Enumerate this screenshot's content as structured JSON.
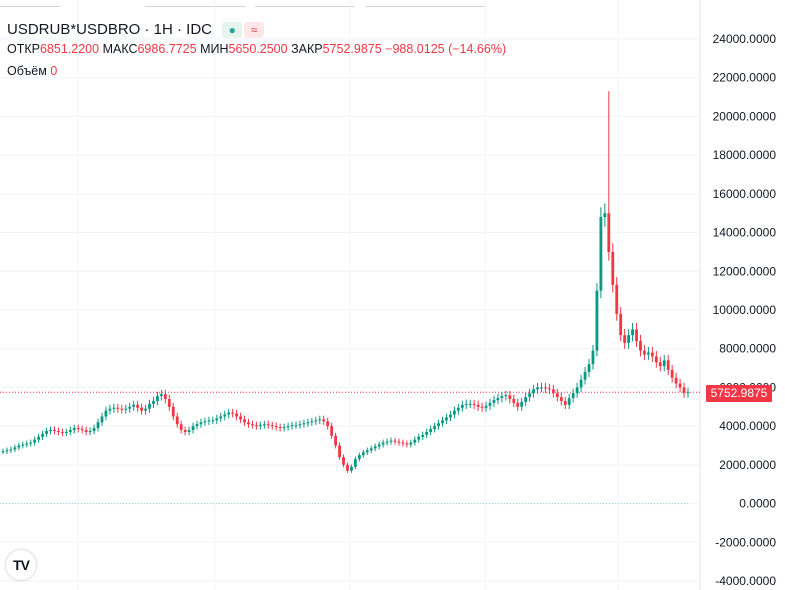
{
  "legend": {
    "symbol": "USDRUB*USDBRO · 1H · IDC",
    "open_label": "ОТКР",
    "open_value": "6851.2200",
    "high_label": "МАКС",
    "high_value": "6986.7725",
    "low_label": "МИН",
    "low_value": "5650.2500",
    "close_label": "ЗАКР",
    "close_value": "5752.9875",
    "change": "−988.0125 (−14.66%)",
    "volume_label": "Объём",
    "volume_value": "0",
    "status_green_icon": "dot-icon",
    "status_red_icon": "wave-icon"
  },
  "last_price_tag": "5752.9875",
  "logo_text": "TV",
  "colors": {
    "up": "#089981",
    "down": "#f23645",
    "grid": "#f0f3fa",
    "axis_text": "#131722",
    "zero_line": "#9ec9d9"
  },
  "chart_data": {
    "type": "candlestick",
    "title": "USDRUB*USDBRO · 1H · IDC",
    "ylim": [
      -4000,
      25000
    ],
    "y_ticks": [
      "24000.0000",
      "22000.0000",
      "20000.0000",
      "18000.0000",
      "16000.0000",
      "14000.0000",
      "12000.0000",
      "10000.0000",
      "8000.0000",
      "6000.0000",
      "4000.0000",
      "2000.0000",
      "0.0000",
      "-2000.0000",
      "-4000.0000"
    ],
    "last_price": 5752.9875,
    "zero_line": 0,
    "grid": true,
    "series": [
      {
        "name": "close",
        "values": [
          2700,
          2750,
          2800,
          2900,
          3000,
          3050,
          3100,
          3150,
          3300,
          3450,
          3600,
          3750,
          3800,
          3750,
          3700,
          3650,
          3700,
          3800,
          3900,
          3850,
          3800,
          3700,
          3750,
          3900,
          4200,
          4500,
          4800,
          4900,
          4950,
          4900,
          4850,
          4900,
          5000,
          5100,
          4950,
          4800,
          4900,
          5150,
          5300,
          5550,
          5650,
          5400,
          5000,
          4500,
          4100,
          3800,
          3700,
          3800,
          4000,
          4100,
          4200,
          4250,
          4300,
          4300,
          4400,
          4500,
          4600,
          4700,
          4650,
          4500,
          4350,
          4200,
          4100,
          4050,
          4000,
          4050,
          4100,
          4050,
          4000,
          3950,
          3900,
          3950,
          4000,
          4050,
          4050,
          4100,
          4150,
          4200,
          4250,
          4300,
          4350,
          4250,
          4000,
          3500,
          3000,
          2400,
          2000,
          1700,
          1900,
          2300,
          2500,
          2650,
          2750,
          2850,
          2950,
          3050,
          3150,
          3200,
          3250,
          3200,
          3150,
          3100,
          3050,
          3150,
          3300,
          3450,
          3550,
          3700,
          3850,
          4000,
          4150,
          4300,
          4450,
          4600,
          4800,
          4950,
          5100,
          5150,
          5150,
          5100,
          5000,
          4950,
          5050,
          5200,
          5350,
          5450,
          5550,
          5600,
          5400,
          5200,
          5000,
          5250,
          5500,
          5700,
          5900,
          6000,
          6000,
          5950,
          5900,
          5700,
          5500,
          5300,
          5100,
          5450,
          5700,
          6000,
          6400,
          6800,
          7200,
          7900,
          11000,
          14800,
          15000,
          13000,
          11300,
          9800,
          8700,
          8300,
          8700,
          9000,
          8400,
          7900,
          7700,
          7800,
          7600,
          7300,
          7100,
          7400,
          6900,
          6500,
          6200,
          6000,
          5700,
          5750
        ]
      }
    ]
  }
}
